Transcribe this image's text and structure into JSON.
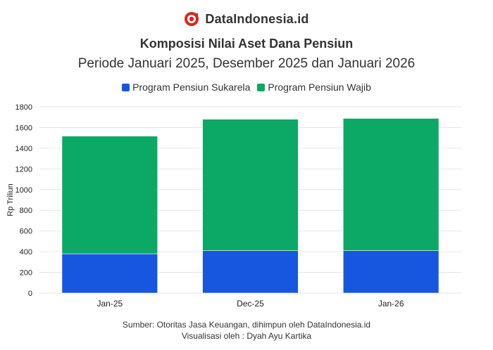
{
  "brand": {
    "name": "DataIndonesia.id",
    "logo_icon": "dataindonesia-logo-icon"
  },
  "chart_data": {
    "type": "bar",
    "stacked": true,
    "title": "Komposisi Nilai Aset Dana Pensiun",
    "subtitle": "Periode Januari 2025, Desember 2025 dan Januari 2026",
    "categories": [
      "Jan-25",
      "Dec-25",
      "Jan-26"
    ],
    "series": [
      {
        "name": "Program Pensiun Sukarela",
        "color": "#1757e0",
        "values": [
          380,
          410,
          410
        ]
      },
      {
        "name": "Program Pensiun Wajib",
        "color": "#0ba965",
        "values": [
          1137,
          1270,
          1278
        ]
      }
    ],
    "xlabel": "",
    "ylabel": "Rp Triliun",
    "ylim": [
      0,
      1800
    ],
    "yticks": [
      0,
      200,
      400,
      600,
      800,
      1000,
      1200,
      1400,
      1600,
      1800
    ],
    "grid": true,
    "legend_position": "top-center"
  },
  "footer": {
    "source": "Sumber: Otoritas Jasa Keuangan, dihimpun oleh DataIndonesia.id",
    "credit": "Visualisasi oleh : Dyah Ayu Kartika"
  }
}
